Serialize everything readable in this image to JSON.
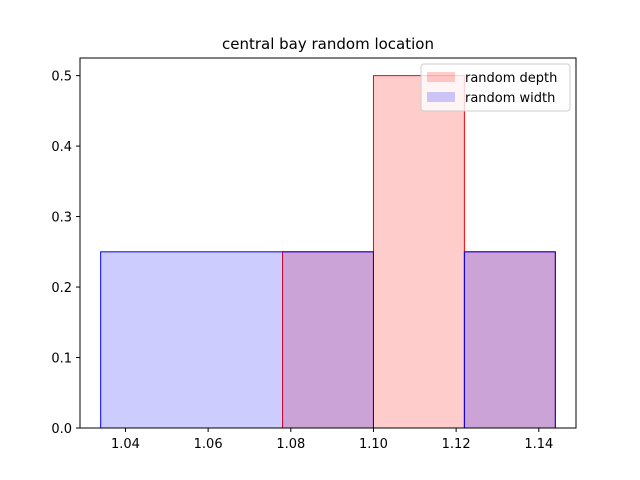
{
  "chart_data": {
    "type": "histogram",
    "title": "central bay random location",
    "xlabel": "",
    "ylabel": "",
    "xlim": [
      1.029,
      1.149
    ],
    "ylim": [
      0,
      0.525
    ],
    "xticks": [
      1.04,
      1.06,
      1.08,
      1.1,
      1.12,
      1.14
    ],
    "xtick_labels": [
      "1.04",
      "1.06",
      "1.08",
      "1.10",
      "1.12",
      "1.14"
    ],
    "yticks": [
      0.0,
      0.1,
      0.2,
      0.3,
      0.4,
      0.5
    ],
    "ytick_labels": [
      "0.0",
      "0.1",
      "0.2",
      "0.3",
      "0.4",
      "0.5"
    ],
    "legend_position": "top-right",
    "series": [
      {
        "name": "random depth",
        "fill": "#ff0000",
        "fill_opacity": 0.2,
        "edge": "#ff0000",
        "bins": [
          {
            "x0": 1.078,
            "x1": 1.1,
            "value": 0.25
          },
          {
            "x0": 1.1,
            "x1": 1.122,
            "value": 0.5
          },
          {
            "x0": 1.122,
            "x1": 1.144,
            "value": 0.25
          }
        ]
      },
      {
        "name": "random width",
        "fill": "#0000ff",
        "fill_opacity": 0.2,
        "edge": "#0000ff",
        "bins": [
          {
            "x0": 1.034,
            "x1": 1.1,
            "value": 0.25
          },
          {
            "x0": 1.1,
            "x1": 1.122,
            "value": 0.0
          },
          {
            "x0": 1.122,
            "x1": 1.144,
            "value": 0.25
          }
        ]
      }
    ]
  }
}
